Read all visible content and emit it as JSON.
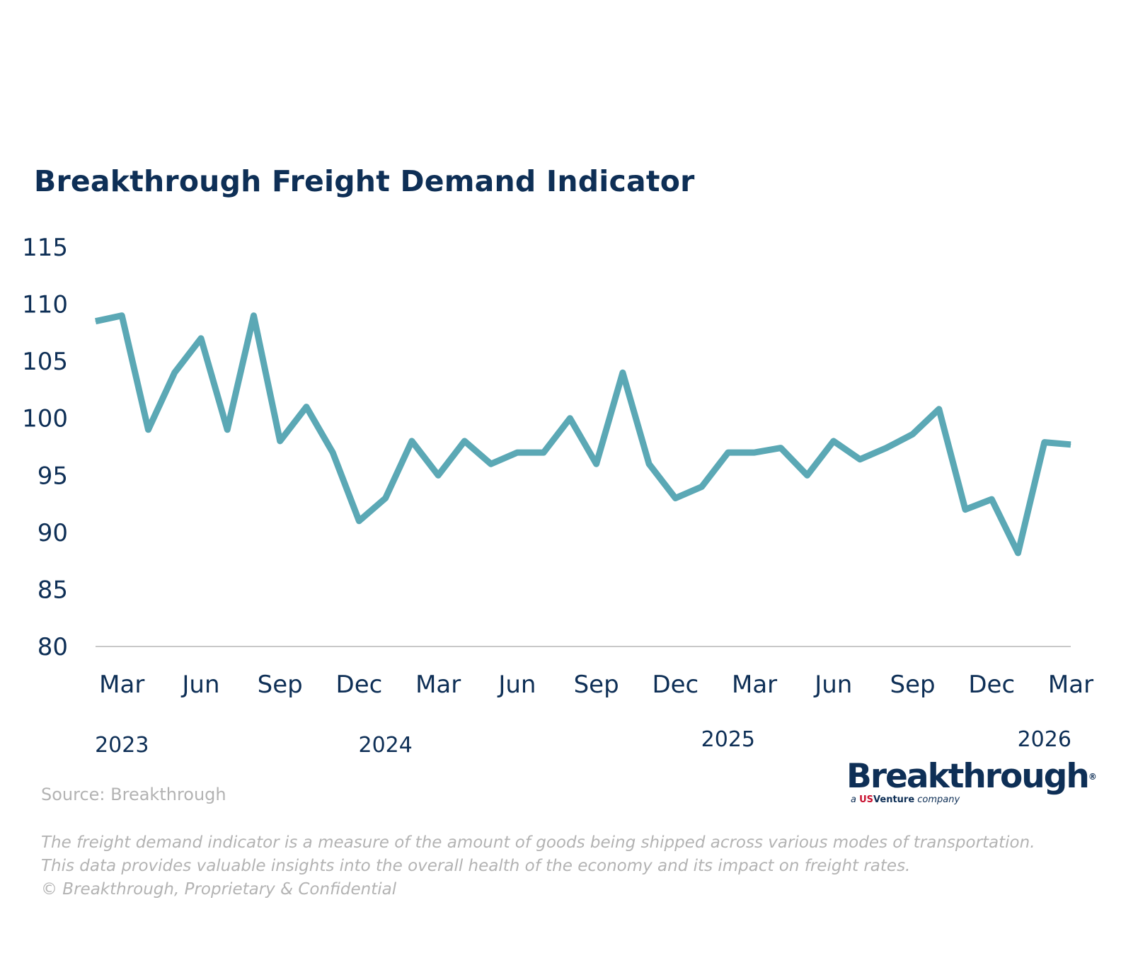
{
  "title": "Breakthrough Freight Demand Indicator",
  "source": "Source: Breakthrough",
  "footnote_lines": [
    "The freight demand indicator is a measure of the amount of goods being shipped across various modes of transportation.",
    "This data provides valuable insights into the overall health of the economy and its impact on freight rates.",
    "© Breakthrough, Proprietary & Confidential"
  ],
  "logo": {
    "wordmark": "Breakthrough",
    "registered": "®",
    "sub_prefix": "a ",
    "sub_brand": "US",
    "sub_brand_rest": "Venture",
    "sub_suffix": " company"
  },
  "colors": {
    "line": "#5ba8b5",
    "text": "#0e2f56",
    "axis": "#c8c8c8",
    "muted": "#b3b3b3"
  },
  "chart_data": {
    "type": "line",
    "title": "Breakthrough Freight Demand Indicator",
    "xlabel": "",
    "ylabel": "",
    "ylim": [
      80,
      115
    ],
    "yticks": [
      80,
      85,
      90,
      95,
      100,
      105,
      110,
      115
    ],
    "grid": false,
    "legend": "none",
    "x": [
      "2023-02",
      "2023-03",
      "2023-04",
      "2023-05",
      "2023-06",
      "2023-07",
      "2023-08",
      "2023-09",
      "2023-10",
      "2023-11",
      "2023-12",
      "2024-01",
      "2024-02",
      "2024-03",
      "2024-04",
      "2024-05",
      "2024-06",
      "2024-07",
      "2024-08",
      "2024-09",
      "2024-10",
      "2024-11",
      "2024-12",
      "2025-01",
      "2025-02",
      "2025-03",
      "2025-04",
      "2025-05",
      "2025-06",
      "2025-07",
      "2025-08",
      "2025-09",
      "2025-10",
      "2025-11",
      "2025-12",
      "2026-01",
      "2026-02",
      "2026-03"
    ],
    "month_tick_labels": [
      {
        "x": "2023-03",
        "label": "Mar"
      },
      {
        "x": "2023-06",
        "label": "Jun"
      },
      {
        "x": "2023-09",
        "label": "Sep"
      },
      {
        "x": "2023-12",
        "label": "Dec"
      },
      {
        "x": "2024-03",
        "label": "Mar"
      },
      {
        "x": "2024-06",
        "label": "Jun"
      },
      {
        "x": "2024-09",
        "label": "Sep"
      },
      {
        "x": "2024-12",
        "label": "Dec"
      },
      {
        "x": "2025-03",
        "label": "Mar"
      },
      {
        "x": "2025-06",
        "label": "Jun"
      },
      {
        "x": "2025-09",
        "label": "Sep"
      },
      {
        "x": "2025-12",
        "label": "Dec"
      },
      {
        "x": "2026-03",
        "label": "Mar"
      }
    ],
    "year_tick_labels": [
      {
        "x": "2023-03",
        "label": "2023",
        "row": 0
      },
      {
        "x": "2024-01",
        "label": "2024",
        "row": 0
      },
      {
        "x": "2025-02",
        "label": "2025",
        "row": 1
      },
      {
        "x": "2026-02",
        "label": "2026",
        "row": 1
      }
    ],
    "series": [
      {
        "values": [
          108.5,
          109,
          99,
          104,
          107,
          99,
          109,
          98,
          101,
          97,
          91,
          93,
          98,
          95,
          98,
          96,
          97,
          97,
          100,
          96,
          104,
          96,
          93,
          94,
          97,
          97,
          97.4,
          95,
          98,
          96.4,
          97.4,
          98.6,
          100.8,
          92,
          92.9,
          88.2,
          97.9,
          97.7
        ]
      }
    ]
  }
}
